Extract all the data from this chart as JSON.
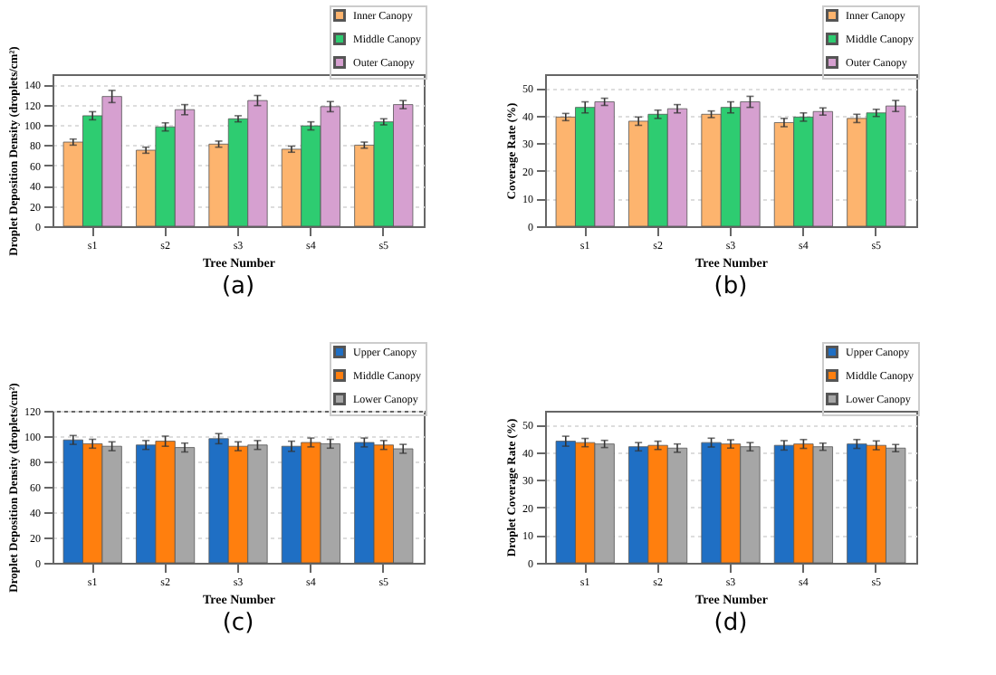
{
  "chart_data": [
    {
      "type": "bar",
      "xlabel": "Tree Number",
      "ylabel": "Droplet Deposition Density (droplets/cm²)",
      "categories": [
        "s1",
        "s2",
        "s3",
        "s4",
        "s5"
      ],
      "ylim": [
        0,
        150
      ],
      "yticks": [
        0,
        20,
        40,
        60,
        80,
        100,
        120,
        140
      ],
      "grid": "y",
      "legend": "top right",
      "annotations": [
        "(a)"
      ],
      "series": [
        {
          "name": "Inner Canopy",
          "color": "#fdb46e",
          "values": [
            83,
            75,
            81,
            76,
            80
          ],
          "errors": [
            3,
            3,
            3,
            3,
            3
          ]
        },
        {
          "name": "Middle Canopy",
          "color": "#2ecc71",
          "values": [
            109,
            98,
            106,
            99,
            103
          ],
          "errors": [
            4,
            4,
            3,
            4,
            3
          ]
        },
        {
          "name": "Outer Canopy",
          "color": "#d6a0d0",
          "values": [
            128,
            115,
            124,
            118,
            120
          ],
          "errors": [
            6,
            5,
            5,
            5,
            4
          ]
        }
      ]
    },
    {
      "type": "bar",
      "xlabel": "Tree Number",
      "ylabel": "Coverage Rate (%)",
      "categories": [
        "s1",
        "s2",
        "s3",
        "s4",
        "s5"
      ],
      "ylim": [
        0,
        55
      ],
      "yticks": [
        0,
        10,
        20,
        30,
        40,
        50
      ],
      "grid": "y",
      "legend": "top right",
      "annotations": [
        "(b)"
      ],
      "series": [
        {
          "name": "Inner Canopy",
          "color": "#fdb46e",
          "values": [
            39.5,
            38,
            40.5,
            37.5,
            39
          ],
          "errors": [
            1.3,
            1.5,
            1.2,
            1.5,
            1.5
          ]
        },
        {
          "name": "Middle Canopy",
          "color": "#2ecc71",
          "values": [
            43,
            40.5,
            43,
            39.5,
            41
          ],
          "errors": [
            2,
            1.5,
            2,
            1.5,
            1.3
          ]
        },
        {
          "name": "Outer Canopy",
          "color": "#d6a0d0",
          "values": [
            45,
            42.5,
            45,
            41.5,
            43.5
          ],
          "errors": [
            1.3,
            1.5,
            2,
            1.3,
            2
          ]
        }
      ]
    },
    {
      "type": "bar",
      "xlabel": "Tree Number",
      "ylabel": "Droplet Deposition Density (droplets/cm²)",
      "categories": [
        "s1",
        "s2",
        "s3",
        "s4",
        "s5"
      ],
      "ylim": [
        0,
        120
      ],
      "yticks": [
        0,
        20,
        40,
        60,
        80,
        100,
        120
      ],
      "grid": "y",
      "legend": "top right",
      "annotations": [
        "(c)"
      ],
      "series": [
        {
          "name": "Upper Canopy",
          "color": "#1f6fc4",
          "values": [
            97,
            93,
            98,
            92,
            95
          ],
          "errors": [
            3.5,
            3.5,
            4,
            4,
            3.5
          ]
        },
        {
          "name": "Middle Canopy",
          "color": "#ff7f0e",
          "values": [
            94,
            96,
            92,
            95,
            93
          ],
          "errors": [
            3.5,
            4,
            3.5,
            3.5,
            3.5
          ]
        },
        {
          "name": "Lower Canopy",
          "color": "#a6a6a6",
          "values": [
            92,
            91,
            93,
            94,
            90
          ],
          "errors": [
            3.5,
            3.5,
            3.5,
            3.5,
            3.5
          ]
        }
      ]
    },
    {
      "type": "bar",
      "xlabel": "Tree Number",
      "ylabel": "Droplet Coverage Rate (%)",
      "categories": [
        "s1",
        "s2",
        "s3",
        "s4",
        "s5"
      ],
      "ylim": [
        0,
        55
      ],
      "yticks": [
        0,
        10,
        20,
        30,
        40,
        50
      ],
      "grid": "y",
      "legend": "top right",
      "annotations": [
        "(d)"
      ],
      "series": [
        {
          "name": "Upper Canopy",
          "color": "#1f6fc4",
          "values": [
            44,
            42,
            43.5,
            42.5,
            43
          ],
          "errors": [
            1.8,
            1.5,
            1.6,
            1.7,
            1.6
          ]
        },
        {
          "name": "Middle Canopy",
          "color": "#ff7f0e",
          "values": [
            43.5,
            42.5,
            43,
            43,
            42.5
          ],
          "errors": [
            1.5,
            1.5,
            1.5,
            1.6,
            1.6
          ]
        },
        {
          "name": "Lower Canopy",
          "color": "#a6a6a6",
          "values": [
            43,
            41.5,
            42,
            42,
            41.5
          ],
          "errors": [
            1.3,
            1.5,
            1.5,
            1.3,
            1.3
          ]
        }
      ]
    }
  ]
}
